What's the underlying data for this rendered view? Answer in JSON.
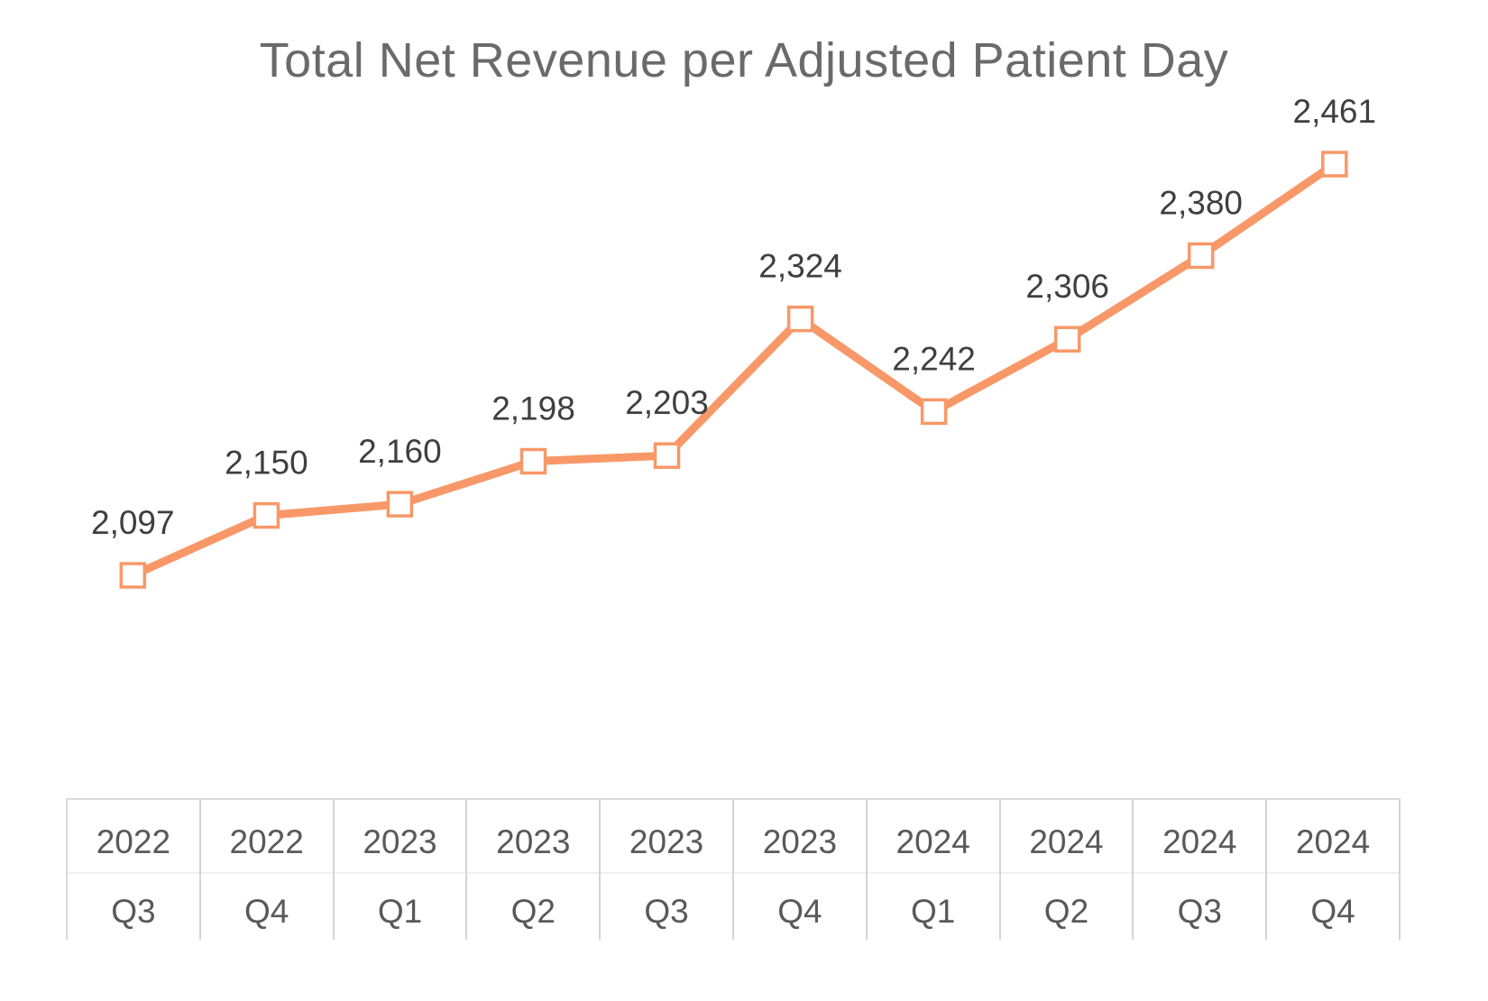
{
  "chart_data": {
    "type": "line",
    "title": "Total Net Revenue per Adjusted Patient Day",
    "categories": [
      "2022 Q3",
      "2022 Q4",
      "2023 Q1",
      "2023 Q2",
      "2023 Q3",
      "2023 Q4",
      "2024 Q1",
      "2024 Q2",
      "2024 Q3",
      "2024 Q4"
    ],
    "x_labels": [
      {
        "year": "2022",
        "quarter": "Q3"
      },
      {
        "year": "2022",
        "quarter": "Q4"
      },
      {
        "year": "2023",
        "quarter": "Q1"
      },
      {
        "year": "2023",
        "quarter": "Q2"
      },
      {
        "year": "2023",
        "quarter": "Q3"
      },
      {
        "year": "2023",
        "quarter": "Q4"
      },
      {
        "year": "2024",
        "quarter": "Q1"
      },
      {
        "year": "2024",
        "quarter": "Q2"
      },
      {
        "year": "2024",
        "quarter": "Q3"
      },
      {
        "year": "2024",
        "quarter": "Q4"
      }
    ],
    "values": [
      2097,
      2150,
      2160,
      2198,
      2203,
      2324,
      2242,
      2306,
      2380,
      2461
    ],
    "data_labels": [
      "2,097",
      "2,150",
      "2,160",
      "2,198",
      "2,203",
      "2,324",
      "2,242",
      "2,306",
      "2,380",
      "2,461"
    ],
    "xlabel": "",
    "ylabel": "",
    "ylim": [
      2030,
      2520
    ],
    "grid": false,
    "y_axis_visible": false,
    "legend": "none",
    "marker_style": "open-square",
    "colors": {
      "line": "#F89868",
      "marker_fill": "#FFFFFF",
      "data_label": "#3F3F3F",
      "title": "#6A6A6A",
      "axis_text": "#595959",
      "table_border": "#D9D9D9",
      "table_column_divider": "#D4D4D4",
      "table_row_divider": "#F0F0F0"
    }
  }
}
